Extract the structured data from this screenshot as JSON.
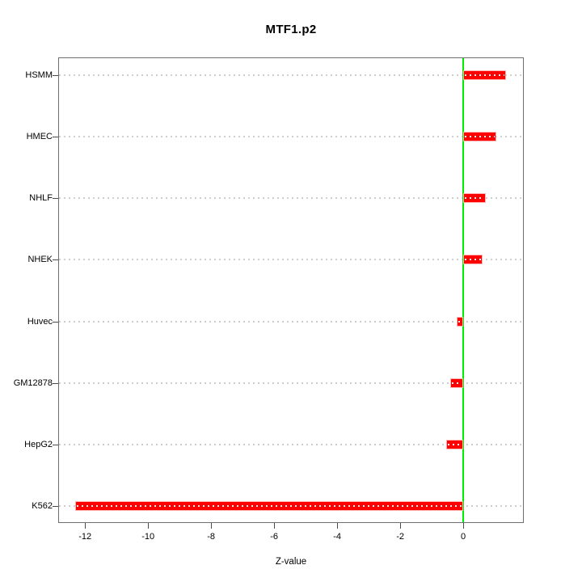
{
  "chart_data": {
    "type": "bar",
    "orientation": "horizontal",
    "title": "MTF1.p2",
    "xlabel": "Z-value",
    "categories": [
      "HSMM",
      "HMEC",
      "NHLF",
      "NHEK",
      "Huvec",
      "GM12878",
      "HepG2",
      "K562"
    ],
    "values": [
      1.36,
      1.05,
      0.72,
      0.62,
      -0.21,
      -0.42,
      -0.55,
      -12.3
    ],
    "xlim": [
      -12.85,
      1.92
    ],
    "xticks": [
      -12,
      -10,
      -8,
      -6,
      -4,
      -2,
      0
    ],
    "grid": true,
    "legend": "none",
    "colors": {
      "bar": "#ff0000",
      "bar_border": "#ffb3b3",
      "bar_center_dots": "#ffffff",
      "zero_line": "#00ee00",
      "grid_line": "#cfcfcf",
      "axis": "#6e6e6e",
      "text": "#000000",
      "background": "#ffffff"
    }
  }
}
